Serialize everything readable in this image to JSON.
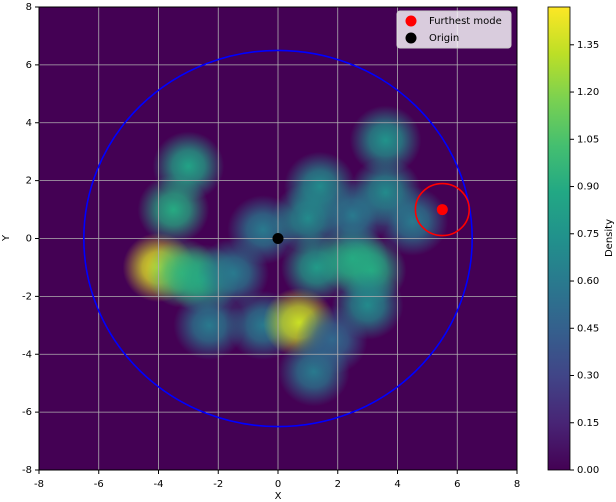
{
  "chart_data": {
    "type": "heatmap",
    "xlabel": "X",
    "ylabel": "Y",
    "xlim": [
      -8,
      8
    ],
    "ylim": [
      -8,
      8
    ],
    "xticks": [
      -8,
      -6,
      -4,
      -2,
      0,
      2,
      4,
      6,
      8
    ],
    "yticks": [
      -8,
      -6,
      -4,
      -2,
      0,
      2,
      4,
      6,
      8
    ],
    "grid": true,
    "colormap": "viridis",
    "modes": [
      {
        "x": -4,
        "y": -1,
        "density": 1.4
      },
      {
        "x": -3.2,
        "y": -1.2,
        "density": 1.0
      },
      {
        "x": -2.5,
        "y": -1.4,
        "density": 0.9
      },
      {
        "x": -1.5,
        "y": -1.2,
        "density": 0.6
      },
      {
        "x": -3,
        "y": 2.5,
        "density": 0.85
      },
      {
        "x": -3.5,
        "y": 1.0,
        "density": 0.9
      },
      {
        "x": -2.3,
        "y": -3,
        "density": 0.6
      },
      {
        "x": -0.5,
        "y": 0.3,
        "density": 0.6
      },
      {
        "x": -0.5,
        "y": -3,
        "density": 0.6
      },
      {
        "x": 0.7,
        "y": -2.9,
        "density": 1.35
      },
      {
        "x": 1.2,
        "y": -4.6,
        "density": 0.6
      },
      {
        "x": 1.0,
        "y": 0.7,
        "density": 0.7
      },
      {
        "x": 1.4,
        "y": 1.8,
        "density": 0.7
      },
      {
        "x": 1.3,
        "y": -1,
        "density": 0.8
      },
      {
        "x": 2.5,
        "y": -0.7,
        "density": 0.9
      },
      {
        "x": 3.1,
        "y": -1.1,
        "density": 0.9
      },
      {
        "x": 3,
        "y": -2.3,
        "density": 0.7
      },
      {
        "x": 3.6,
        "y": 3.4,
        "density": 0.75
      },
      {
        "x": 3.6,
        "y": 1.6,
        "density": 0.7
      },
      {
        "x": 2.5,
        "y": 0.8,
        "density": 0.6
      },
      {
        "x": 4.5,
        "y": 0.6,
        "density": 0.6
      },
      {
        "x": 1.8,
        "y": -3.5,
        "density": 0.5
      }
    ],
    "colorbar": {
      "label": "Density",
      "lim": [
        0,
        1.47
      ],
      "ticks": [
        {
          "value": 0,
          "label": "0.00"
        },
        {
          "value": 0.15,
          "label": "0.15"
        },
        {
          "value": 0.3,
          "label": "0.30"
        },
        {
          "value": 0.45,
          "label": "0.45"
        },
        {
          "value": 0.6,
          "label": "0.60"
        },
        {
          "value": 0.75,
          "label": "0.75"
        },
        {
          "value": 0.9,
          "label": "0.90"
        },
        {
          "value": 1.05,
          "label": "1.05"
        },
        {
          "value": 1.2,
          "label": "1.20"
        },
        {
          "value": 1.35,
          "label": "1.35"
        }
      ]
    },
    "circles": [
      {
        "cx": 0,
        "cy": 0,
        "r": 6.5,
        "color": "blue"
      },
      {
        "cx": 5.5,
        "cy": 1,
        "r": 0.9,
        "color": "red"
      }
    ],
    "series": [
      {
        "name": "Furthest mode",
        "color": "red",
        "x": [
          5.5
        ],
        "values": [
          1
        ]
      },
      {
        "name": "Origin",
        "color": "black",
        "x": [
          0
        ],
        "values": [
          0
        ]
      }
    ],
    "legend": "upper right"
  }
}
